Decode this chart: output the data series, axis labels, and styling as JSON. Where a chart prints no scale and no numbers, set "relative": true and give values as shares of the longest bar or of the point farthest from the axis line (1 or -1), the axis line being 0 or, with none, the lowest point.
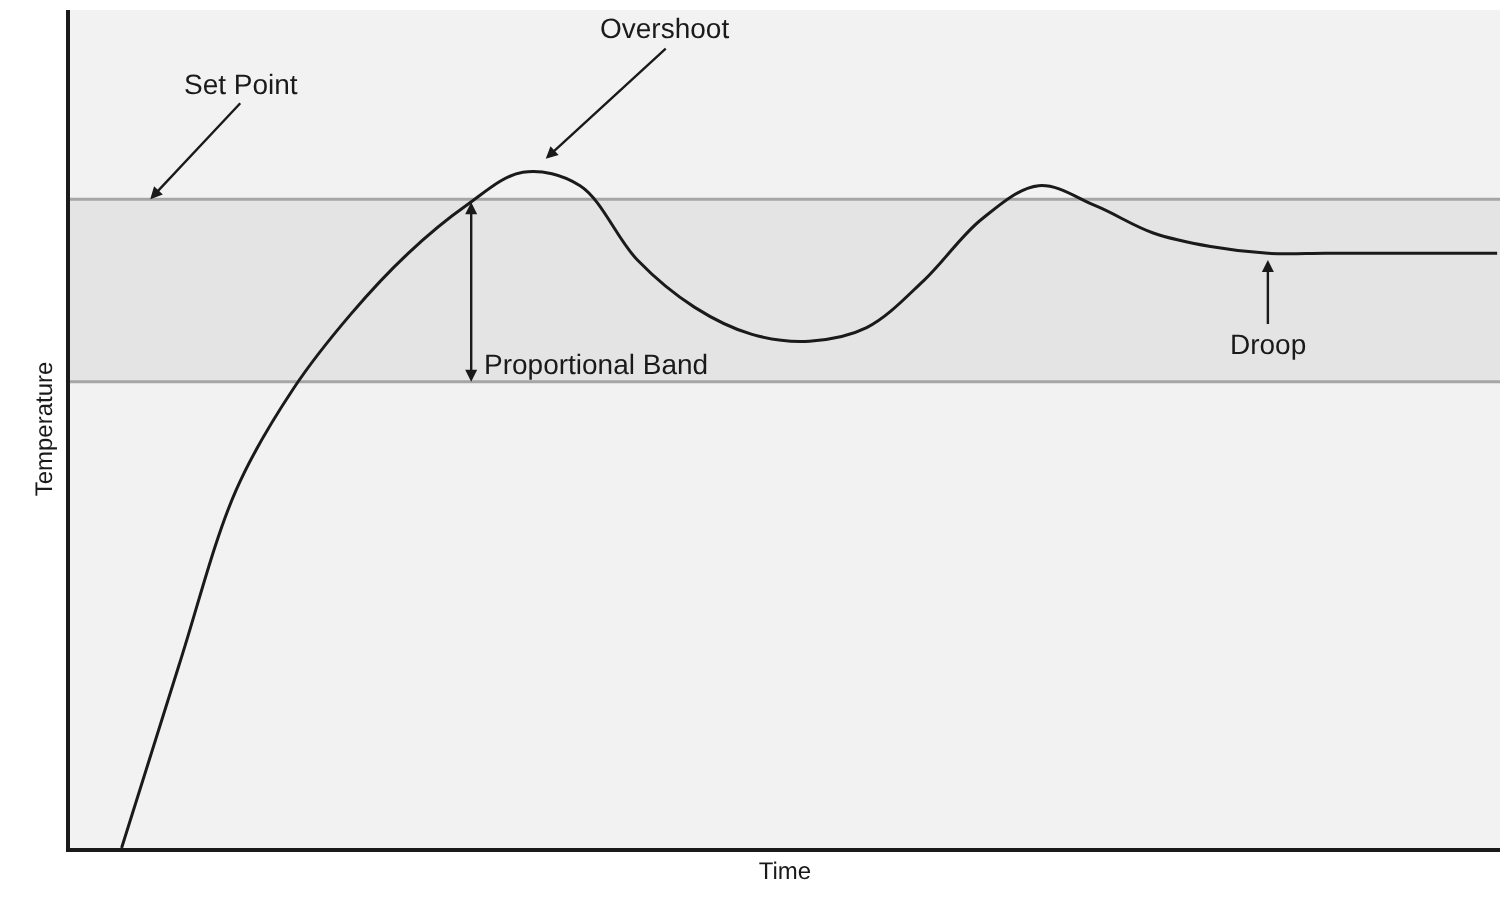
{
  "chart_data": {
    "type": "line",
    "relative": true,
    "xlabel": "Time",
    "ylabel": "Temperature",
    "color": "#1a1a1a",
    "categories": [
      null,
      null,
      null,
      null,
      null,
      null,
      null,
      null,
      null,
      null,
      null,
      null,
      null,
      null,
      null,
      null,
      null,
      null,
      null,
      null,
      null,
      null,
      null,
      null,
      null
    ],
    "values": [
      0,
      0.27,
      0.53,
      0.68,
      0.79,
      0.88,
      0.95,
      1,
      0.98,
      0.87,
      0.8,
      0.76,
      0.75,
      0.77,
      0.84,
      0.93,
      0.98,
      0.95,
      0.91,
      0.89,
      0.88,
      0.88,
      0.88,
      0.88,
      0.88
    ],
    "ref_lines": [
      {
        "axis": "y",
        "value": 0.96,
        "label": "Set Point",
        "color": "#a6a6a6"
      },
      {
        "axis": "y",
        "value": 0.69,
        "color": "#a6a6a6"
      }
    ],
    "bands": [
      {
        "axis": "y",
        "from": 0.69,
        "to": 0.96,
        "label": "Proportional Band",
        "color": "#e4e4e4"
      }
    ],
    "annotations": [
      "Overshoot",
      "Droop"
    ]
  }
}
